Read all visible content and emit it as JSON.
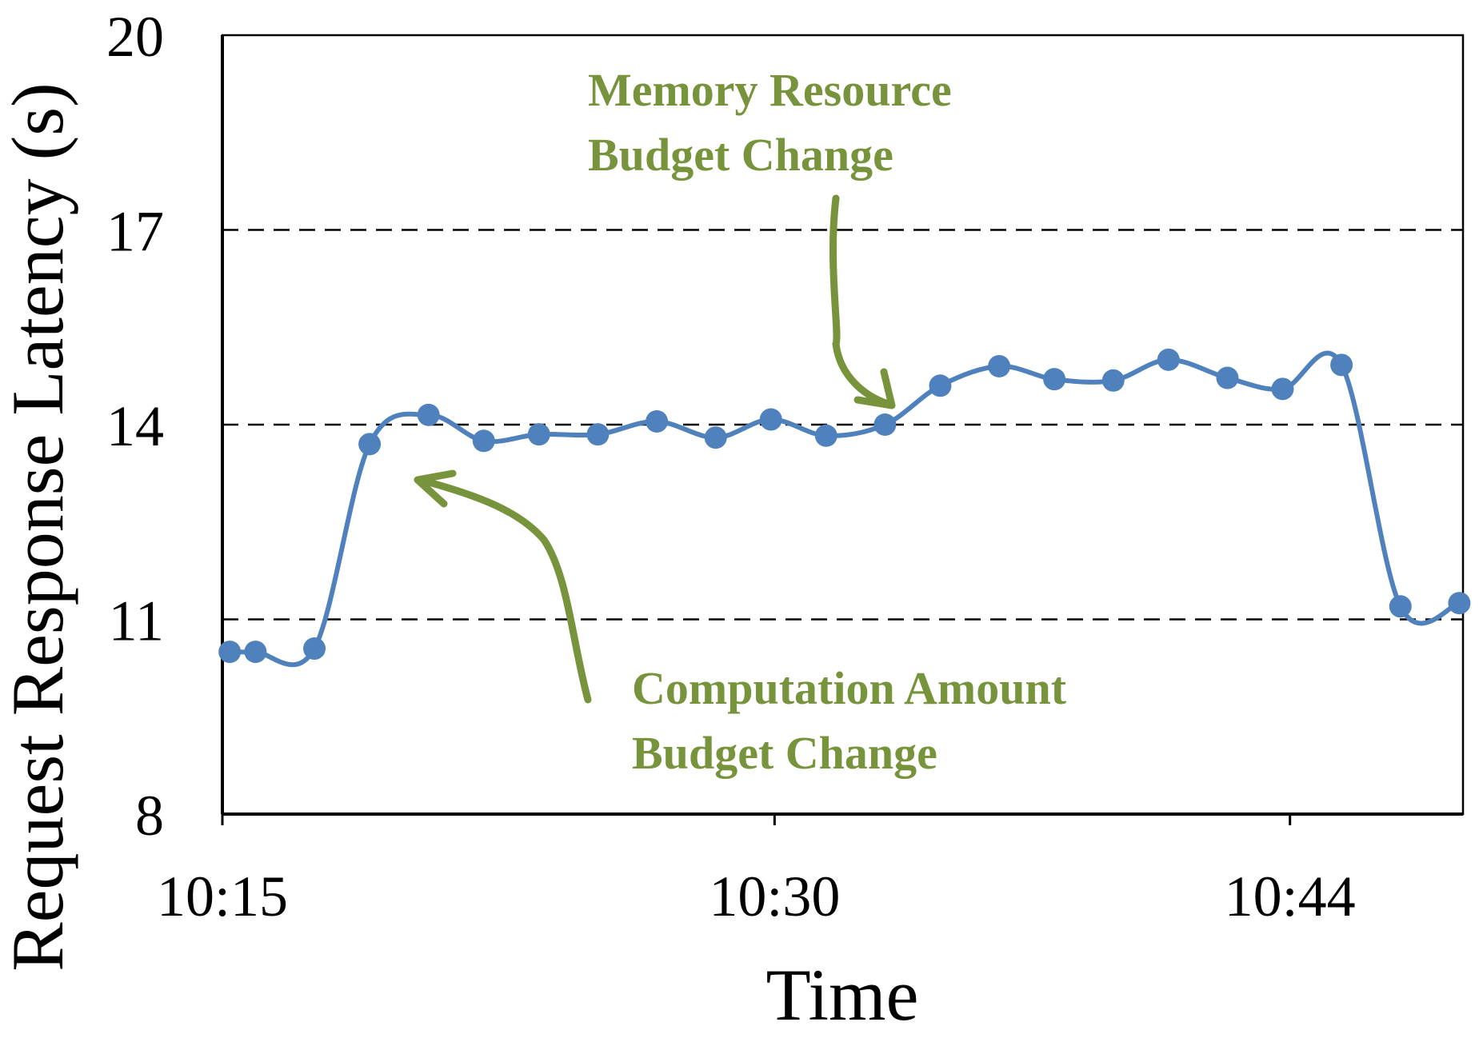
{
  "chart_data": {
    "type": "line",
    "title": "",
    "xlabel": "Time",
    "ylabel": "Request Response Latency (s)",
    "ylim": [
      8,
      20
    ],
    "yticks": [
      8,
      11,
      14,
      17,
      20
    ],
    "grid": "horizontal dashed",
    "x_tick_labels": [
      {
        "label": "10:15",
        "value": 0
      },
      {
        "label": "10:30",
        "value": 15
      },
      {
        "label": "10:44",
        "value": 29
      }
    ],
    "xlim": [
      0,
      33.7
    ],
    "series": [
      {
        "name": "",
        "color": "#4f81bd",
        "points": [
          {
            "x": 0.2,
            "y": 10.5
          },
          {
            "x": 0.9,
            "y": 10.5
          },
          {
            "x": 2.5,
            "y": 10.55
          },
          {
            "x": 4.0,
            "y": 13.7
          },
          {
            "x": 5.6,
            "y": 14.15
          },
          {
            "x": 7.1,
            "y": 13.75
          },
          {
            "x": 8.6,
            "y": 13.85
          },
          {
            "x": 10.2,
            "y": 13.85
          },
          {
            "x": 11.8,
            "y": 14.05
          },
          {
            "x": 13.4,
            "y": 13.8
          },
          {
            "x": 14.9,
            "y": 14.08
          },
          {
            "x": 16.4,
            "y": 13.83
          },
          {
            "x": 18.0,
            "y": 14.0
          },
          {
            "x": 19.5,
            "y": 14.6
          },
          {
            "x": 21.1,
            "y": 14.9
          },
          {
            "x": 22.6,
            "y": 14.7
          },
          {
            "x": 24.2,
            "y": 14.68
          },
          {
            "x": 25.7,
            "y": 15.0
          },
          {
            "x": 27.3,
            "y": 14.72
          },
          {
            "x": 28.8,
            "y": 14.55
          },
          {
            "x": 30.4,
            "y": 14.92
          },
          {
            "x": 32.0,
            "y": 11.2
          },
          {
            "x": 33.6,
            "y": 11.25
          }
        ]
      }
    ],
    "annotations": [
      {
        "id": "memory",
        "lines": [
          "Memory Resource",
          "Budget Change"
        ],
        "color": "#77933c"
      },
      {
        "id": "computation",
        "lines": [
          "Computation Amount",
          "Budget Change"
        ],
        "color": "#77933c"
      }
    ]
  }
}
